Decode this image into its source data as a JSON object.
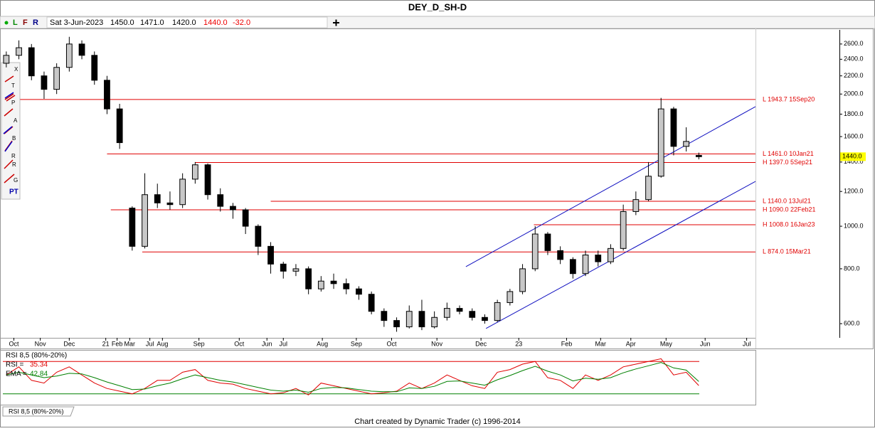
{
  "window": {
    "title": "DEY_D_SH-D",
    "toolbar": {
      "links": [
        "L",
        "F",
        "R"
      ],
      "date": "Sat 3-Jun-2023",
      "open": "1450.0",
      "high": "1471.0",
      "low": "1420.0",
      "close": "1440.0",
      "change": "-32.0"
    },
    "tools": [
      "T",
      "P",
      "A",
      "B",
      "R",
      "R",
      "G",
      "X",
      "PT"
    ],
    "tab": "RSI 8,5 (80%-20%)",
    "footer": "Chart created by Dynamic Trader  (c) 1996-2014"
  },
  "chart_data": [
    {
      "type": "candlestick",
      "log_scale": true,
      "open": [
        2350,
        2450,
        2550,
        2200,
        2050,
        2300,
        2600,
        2450,
        2150,
        1850,
        1100,
        900,
        1180,
        1130,
        1120,
        1280,
        1380,
        1180,
        1110,
        1090,
        1000,
        900,
        820,
        790,
        800,
        720,
        750,
        740,
        720,
        700,
        640,
        610,
        590,
        640,
        590,
        620,
        650,
        640,
        620,
        610,
        670,
        710,
        800,
        960,
        880,
        840,
        780,
        860,
        830,
        890,
        1080,
        1150,
        1300,
        1850,
        1520,
        1450
      ],
      "high": [
        2500,
        2650,
        2600,
        2250,
        2350,
        2700,
        2650,
        2500,
        2200,
        1900,
        1110,
        1320,
        1250,
        1200,
        1320,
        1400,
        1390,
        1220,
        1130,
        1100,
        1010,
        920,
        830,
        820,
        810,
        770,
        780,
        760,
        730,
        710,
        650,
        620,
        660,
        680,
        640,
        670,
        660,
        650,
        630,
        680,
        720,
        820,
        1000,
        970,
        900,
        850,
        880,
        880,
        910,
        1120,
        1200,
        1400,
        1960,
        1870,
        1680,
        1471
      ],
      "low": [
        2300,
        2400,
        2150,
        1950,
        2000,
        2250,
        2400,
        2100,
        1800,
        1500,
        880,
        890,
        1100,
        1090,
        1100,
        1250,
        1150,
        1080,
        1040,
        960,
        860,
        780,
        760,
        770,
        700,
        710,
        720,
        700,
        680,
        630,
        590,
        575,
        585,
        580,
        585,
        610,
        630,
        610,
        600,
        605,
        660,
        700,
        790,
        860,
        820,
        760,
        770,
        810,
        820,
        880,
        1060,
        1140,
        1290,
        1450,
        1480,
        1420
      ],
      "close": [
        2450,
        2550,
        2200,
        2050,
        2300,
        2600,
        2450,
        2150,
        1850,
        1550,
        900,
        1180,
        1130,
        1120,
        1280,
        1380,
        1180,
        1110,
        1090,
        1000,
        900,
        820,
        790,
        800,
        720,
        750,
        740,
        720,
        700,
        640,
        610,
        590,
        640,
        590,
        620,
        650,
        640,
        620,
        610,
        670,
        710,
        800,
        960,
        880,
        840,
        780,
        860,
        830,
        890,
        1080,
        1150,
        1300,
        1850,
        1520,
        1560,
        1440
      ],
      "xlim": [
        0,
        60
      ],
      "ylim": [
        557,
        2800
      ],
      "yticks": [
        {
          "value": 600,
          "label": "600.0"
        },
        {
          "value": 800,
          "label": "800.0"
        },
        {
          "value": 1000,
          "label": "1000.0"
        },
        {
          "value": 1200,
          "label": "1200.0"
        },
        {
          "value": 1400,
          "label": "1400.0"
        },
        {
          "value": 1600,
          "label": "1600.0"
        },
        {
          "value": 1800,
          "label": "1800.0"
        },
        {
          "value": 2000,
          "label": "2000.0"
        },
        {
          "value": 2200,
          "label": "2200.0"
        },
        {
          "value": 2400,
          "label": "2400.0"
        },
        {
          "value": 2600,
          "label": "2600.0"
        }
      ],
      "xticks": [
        {
          "value": 1.1,
          "label": "Oct"
        },
        {
          "value": 3.2,
          "label": "Nov"
        },
        {
          "value": 5.5,
          "label": "Dec"
        },
        {
          "value": 8.4,
          "label": "21"
        },
        {
          "value": 9.3,
          "label": "Feb"
        },
        {
          "value": 10.3,
          "label": "Mar"
        },
        {
          "value": 11.9,
          "label": "Jul"
        },
        {
          "value": 12.9,
          "label": "Aug"
        },
        {
          "value": 15.8,
          "label": "Sep"
        },
        {
          "value": 19.0,
          "label": "Oct"
        },
        {
          "value": 21.2,
          "label": "Jun"
        },
        {
          "value": 22.5,
          "label": "Jul"
        },
        {
          "value": 25.6,
          "label": "Aug"
        },
        {
          "value": 28.3,
          "label": "Sep"
        },
        {
          "value": 31.1,
          "label": "Oct"
        },
        {
          "value": 34.7,
          "label": "Nov"
        },
        {
          "value": 38.2,
          "label": "Dec"
        },
        {
          "value": 41.2,
          "label": "23"
        },
        {
          "value": 45.0,
          "label": "Feb"
        },
        {
          "value": 47.7,
          "label": "Mar"
        },
        {
          "value": 50.1,
          "label": "Apr"
        },
        {
          "value": 52.9,
          "label": "May"
        },
        {
          "value": 56.0,
          "label": "Jun"
        },
        {
          "value": 59.3,
          "label": "Jul"
        }
      ],
      "levels": [
        {
          "value": 1943.7,
          "label": "L 1943.7 15Sep20",
          "start": 1.6
        },
        {
          "value": 1461.0,
          "label": "L 1461.0 10Jan21",
          "start": 8.5
        },
        {
          "value": 1397.0,
          "label": "H 1397.0 5Sep21",
          "start": 15.5
        },
        {
          "value": 1140.0,
          "label": "L 1140.0 13Jul21",
          "start": 21.5
        },
        {
          "value": 1090.0,
          "label": "H 1090.0 22Feb21",
          "start": 8.8
        },
        {
          "value": 1008.0,
          "label": "H 1008.0 16Jan23",
          "start": 42.4
        },
        {
          "value": 874.0,
          "label": "L 874.0 15Mar21",
          "start": 11.3
        }
      ],
      "level_color": "#e00000",
      "trendlines": [
        {
          "x": [
            37.0,
            60
          ],
          "y": [
            809,
            1872
          ]
        },
        {
          "x": [
            38.6,
            60
          ],
          "y": [
            585,
            1265
          ]
        }
      ],
      "trendline_color": "#1010c0"
    },
    {
      "type": "line",
      "title": "RSI 8,5 (80%-20%)",
      "series": [
        {
          "name": "RSI =",
          "color": "#e00000",
          "values": [
            55,
            70,
            45,
            40,
            60,
            70,
            55,
            40,
            30,
            25,
            20,
            30,
            45,
            45,
            60,
            65,
            45,
            40,
            38,
            30,
            25,
            20,
            22,
            30,
            18,
            40,
            35,
            30,
            25,
            20,
            22,
            25,
            40,
            30,
            40,
            55,
            45,
            35,
            30,
            60,
            65,
            75,
            80,
            50,
            45,
            30,
            55,
            45,
            55,
            70,
            75,
            80,
            85,
            55,
            60,
            35.34
          ]
        },
        {
          "name": "EMA =",
          "color": "#008000",
          "values": [
            55,
            60,
            55,
            50,
            53,
            58,
            57,
            50,
            42,
            35,
            28,
            29,
            35,
            40,
            48,
            55,
            50,
            45,
            42,
            37,
            32,
            27,
            25,
            27,
            23,
            30,
            32,
            31,
            28,
            25,
            24,
            24,
            31,
            30,
            34,
            43,
            44,
            40,
            36,
            46,
            54,
            63,
            71,
            62,
            55,
            44,
            49,
            47,
            50,
            59,
            66,
            72,
            78,
            68,
            64,
            42.84
          ]
        }
      ],
      "ylim": [
        0,
        100
      ],
      "bands": [
        {
          "value": 80,
          "color": "#e00000"
        },
        {
          "value": 20,
          "color": "#008000"
        }
      ]
    }
  ]
}
